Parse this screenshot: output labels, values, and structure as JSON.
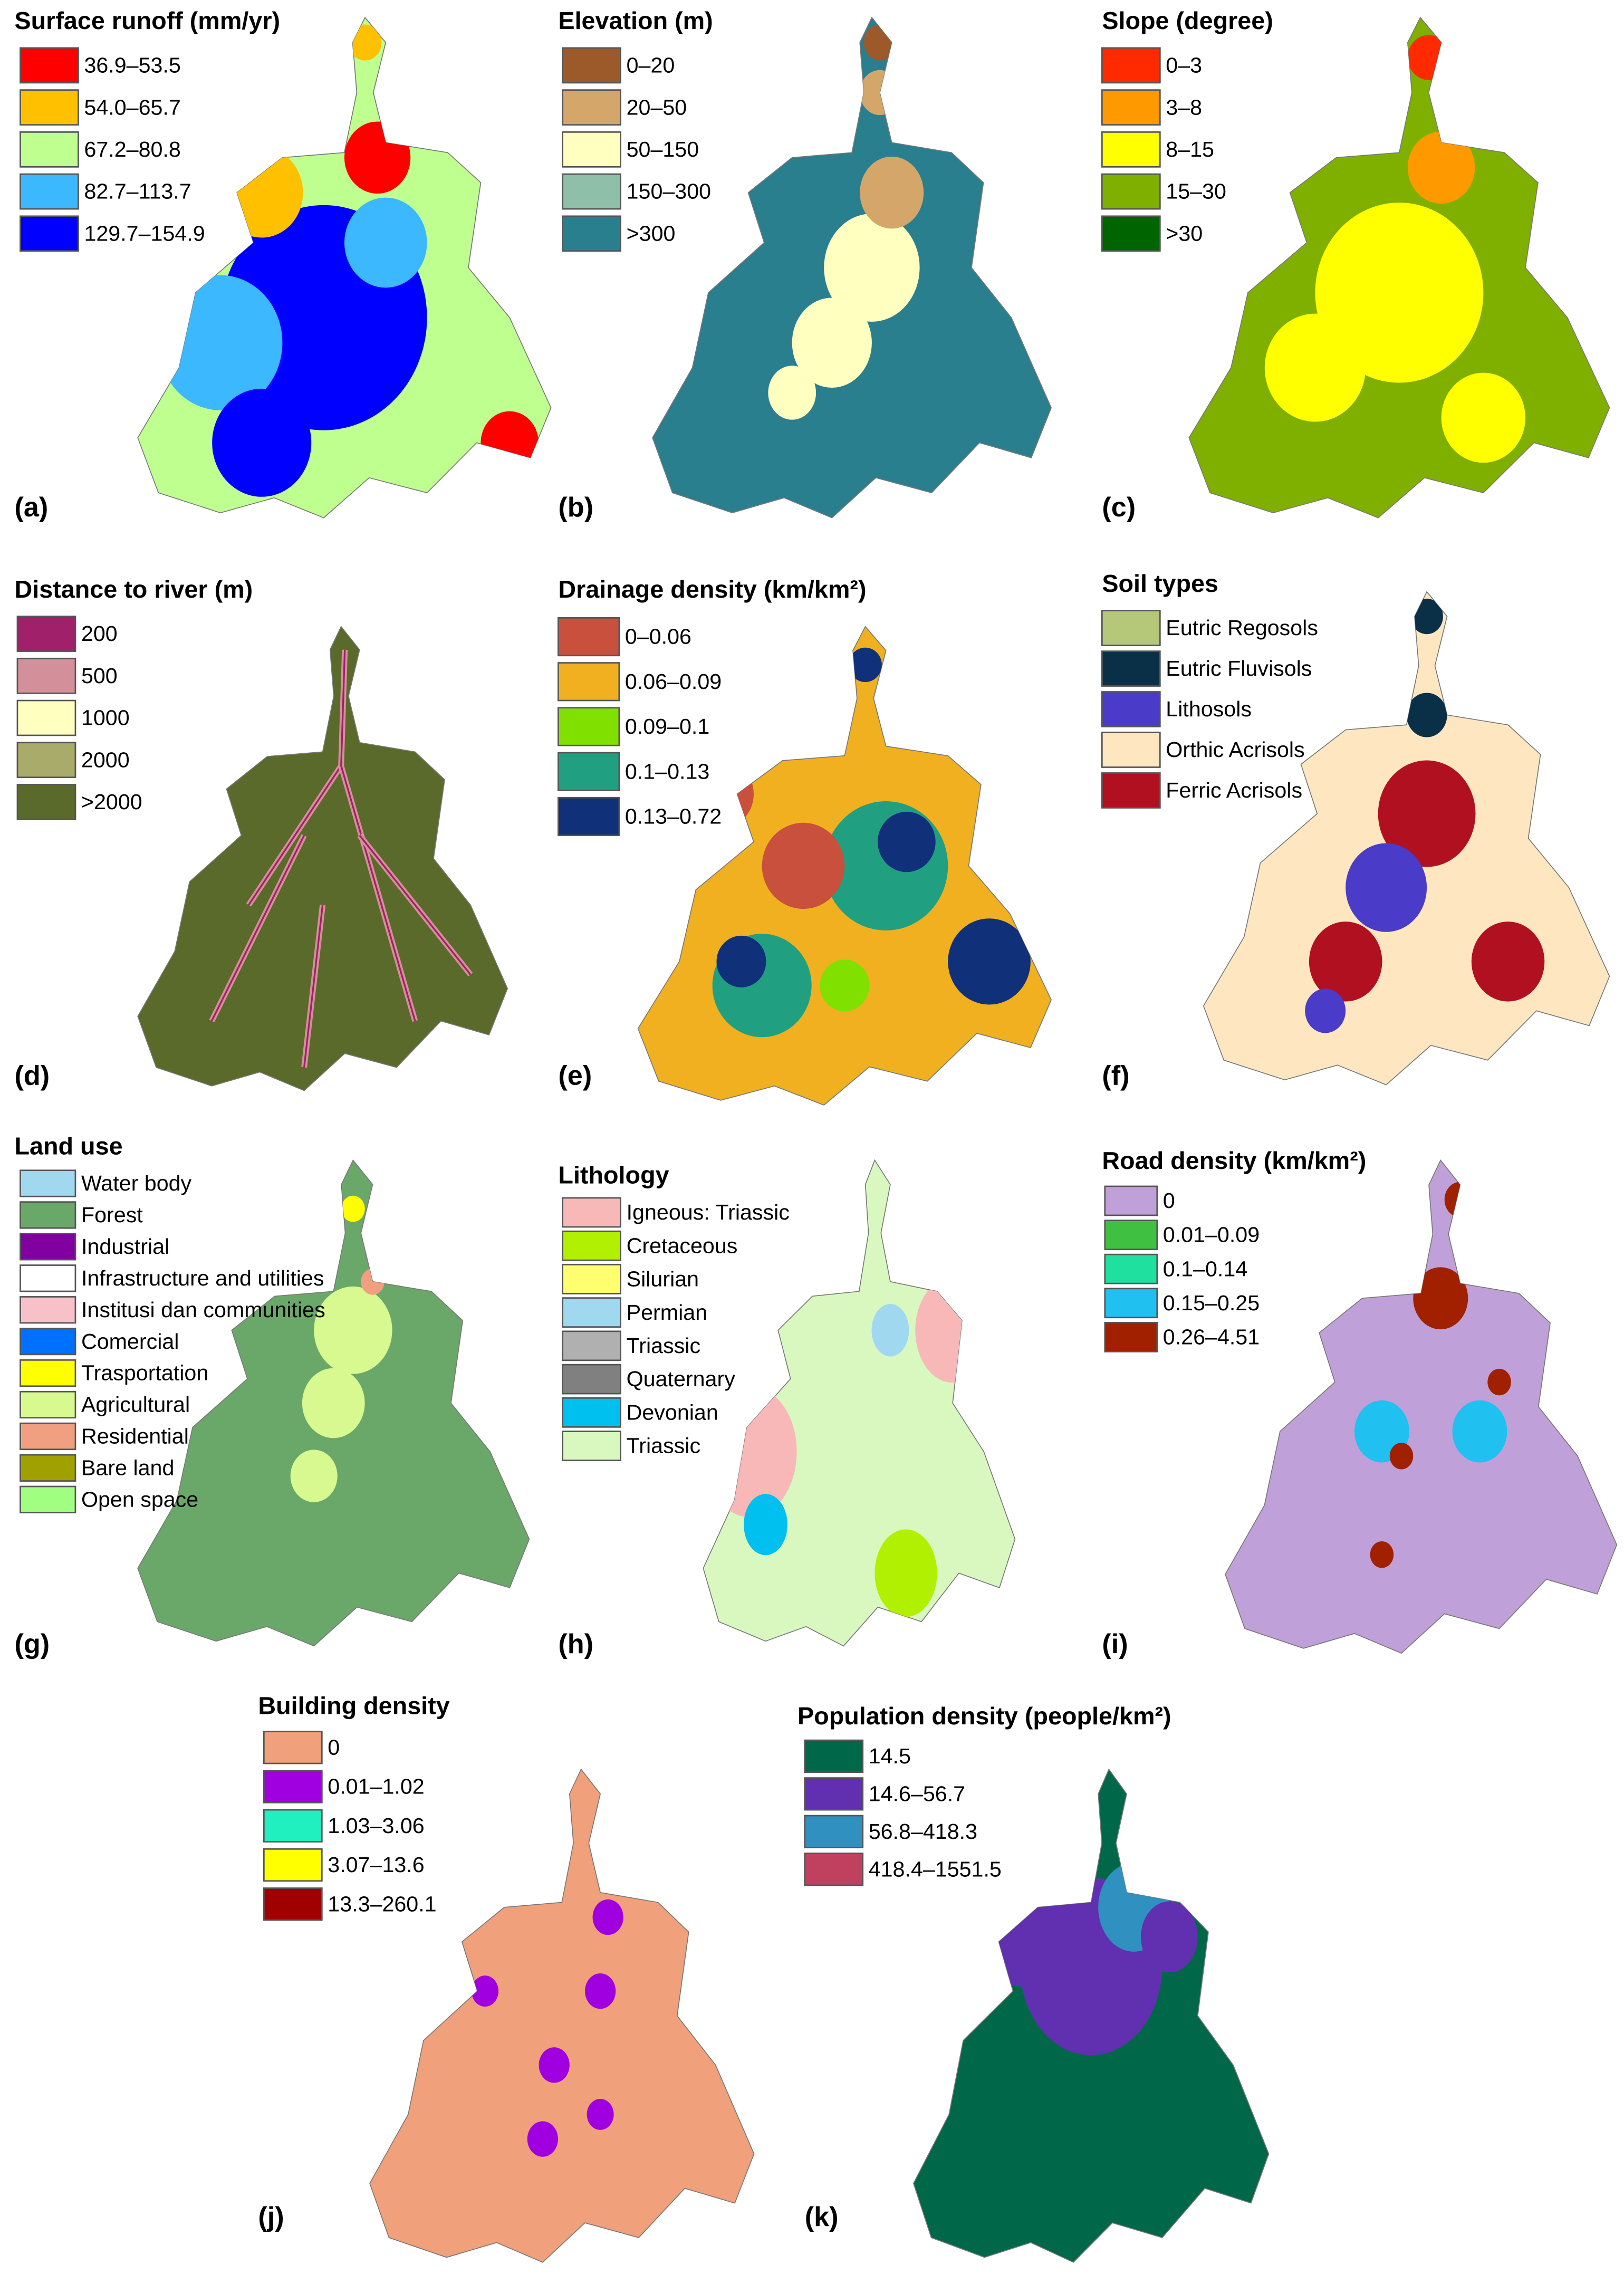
{
  "panels": [
    {
      "letter": "(a)",
      "title": "Surface runoff (mm/yr)",
      "legend": [
        {
          "label": "36.9–53.5",
          "color": "#ff0000"
        },
        {
          "label": "54.0–65.7",
          "color": "#ffc000"
        },
        {
          "label": "67.2–80.8",
          "color": "#bfff8f"
        },
        {
          "label": "82.7–113.7",
          "color": "#3cb8ff"
        },
        {
          "label": "129.7–154.9",
          "color": "#0000ff"
        }
      ]
    },
    {
      "letter": "(b)",
      "title": "Elevation (m)",
      "legend": [
        {
          "label": "0–20",
          "color": "#9c5a2a"
        },
        {
          "label": "20–50",
          "color": "#d4a66a"
        },
        {
          "label": "50–150",
          "color": "#ffffc0"
        },
        {
          "label": "150–300",
          "color": "#8fbfa8"
        },
        {
          "label": ">300",
          "color": "#2a7f8f"
        }
      ]
    },
    {
      "letter": "(c)",
      "title": "Slope (degree)",
      "legend": [
        {
          "label": "0–3",
          "color": "#ff2a00"
        },
        {
          "label": "3–8",
          "color": "#ff9900"
        },
        {
          "label": "8–15",
          "color": "#ffff00"
        },
        {
          "label": "15–30",
          "color": "#7fb000"
        },
        {
          "label": ">30",
          "color": "#006400"
        }
      ]
    },
    {
      "letter": "(d)",
      "title": "Distance to river (m)",
      "legend": [
        {
          "label": "200",
          "color": "#a0206a"
        },
        {
          "label": "500",
          "color": "#d4909a"
        },
        {
          "label": "1000",
          "color": "#ffffc0"
        },
        {
          "label": "2000",
          "color": "#a8ab6a"
        },
        {
          "label": ">2000",
          "color": "#5a6a2a"
        }
      ]
    },
    {
      "letter": "(e)",
      "title": "Drainage density (km/km²)",
      "legend": [
        {
          "label": "0–0.06",
          "color": "#c8503c"
        },
        {
          "label": "0.06–0.09",
          "color": "#f0b020"
        },
        {
          "label": "0.09–0.1",
          "color": "#80e000"
        },
        {
          "label": "0.1–0.13",
          "color": "#20a080"
        },
        {
          "label": "0.13–0.72",
          "color": "#10307a"
        }
      ]
    },
    {
      "letter": "(f)",
      "title": "Soil types",
      "legend": [
        {
          "label": "Eutric Regosols",
          "color": "#b5c87a"
        },
        {
          "label": "Eutric Fluvisols",
          "color": "#0a3048"
        },
        {
          "label": "Lithosols",
          "color": "#4a3cc8"
        },
        {
          "label": "Orthic Acrisols",
          "color": "#fde6c0"
        },
        {
          "label": "Ferric Acrisols",
          "color": "#b01020"
        }
      ]
    },
    {
      "letter": "(g)",
      "title": "Land use",
      "legend": [
        {
          "label": "Water body",
          "color": "#a0d8f0"
        },
        {
          "label": "Forest",
          "color": "#6aa86a"
        },
        {
          "label": "Industrial",
          "color": "#8000a0"
        },
        {
          "label": "Infrastructure and utilities",
          "color": "#ffffff"
        },
        {
          "label": "Institusi dan communities",
          "color": "#f8c0c8"
        },
        {
          "label": "Comercial",
          "color": "#0070ff"
        },
        {
          "label": "Trasportation",
          "color": "#ffff00"
        },
        {
          "label": "Agricultural",
          "color": "#d8f890"
        },
        {
          "label": "Residential",
          "color": "#f0a080"
        },
        {
          "label": "Bare land",
          "color": "#a0a000"
        },
        {
          "label": "Open space",
          "color": "#a0ff80"
        }
      ]
    },
    {
      "letter": "(h)",
      "title": "Lithology",
      "legend": [
        {
          "label": "Igneous: Triassic",
          "color": "#f8b8b8"
        },
        {
          "label": "Cretaceous",
          "color": "#b0f000"
        },
        {
          "label": "Silurian",
          "color": "#ffff70"
        },
        {
          "label": "Permian",
          "color": "#a0d8f0"
        },
        {
          "label": "Triassic",
          "color": "#b0b0b0"
        },
        {
          "label": "Quaternary",
          "color": "#808080"
        },
        {
          "label": "Devonian",
          "color": "#00c0f0"
        },
        {
          "label": "Triassic",
          "color": "#d8f8c0"
        }
      ]
    },
    {
      "letter": "(i)",
      "title": "Road density (km/km²)",
      "legend": [
        {
          "label": "0",
          "color": "#c0a0d8"
        },
        {
          "label": "0.01–0.09",
          "color": "#40c040"
        },
        {
          "label": "0.1–0.14",
          "color": "#20e0a0"
        },
        {
          "label": "0.15–0.25",
          "color": "#20c0f0"
        },
        {
          "label": "0.26–4.51",
          "color": "#a02000"
        }
      ]
    },
    {
      "letter": "(j)",
      "title": "Building density",
      "legend": [
        {
          "label": "0",
          "color": "#f0a07a"
        },
        {
          "label": "0.01–1.02",
          "color": "#a000e0"
        },
        {
          "label": "1.03–3.06",
          "color": "#20f0c0"
        },
        {
          "label": "3.07–13.6",
          "color": "#ffff00"
        },
        {
          "label": "13.3–260.1",
          "color": "#a00000"
        }
      ]
    },
    {
      "letter": "(k)",
      "title": "Population density (people/km²)",
      "legend": [
        {
          "label": "14.5",
          "color": "#006848"
        },
        {
          "label": "14.6–56.7",
          "color": "#6030b0"
        },
        {
          "label": "56.8–418.3",
          "color": "#3090c0"
        },
        {
          "label": "418.4–1551.5",
          "color": "#c04060"
        }
      ]
    }
  ]
}
